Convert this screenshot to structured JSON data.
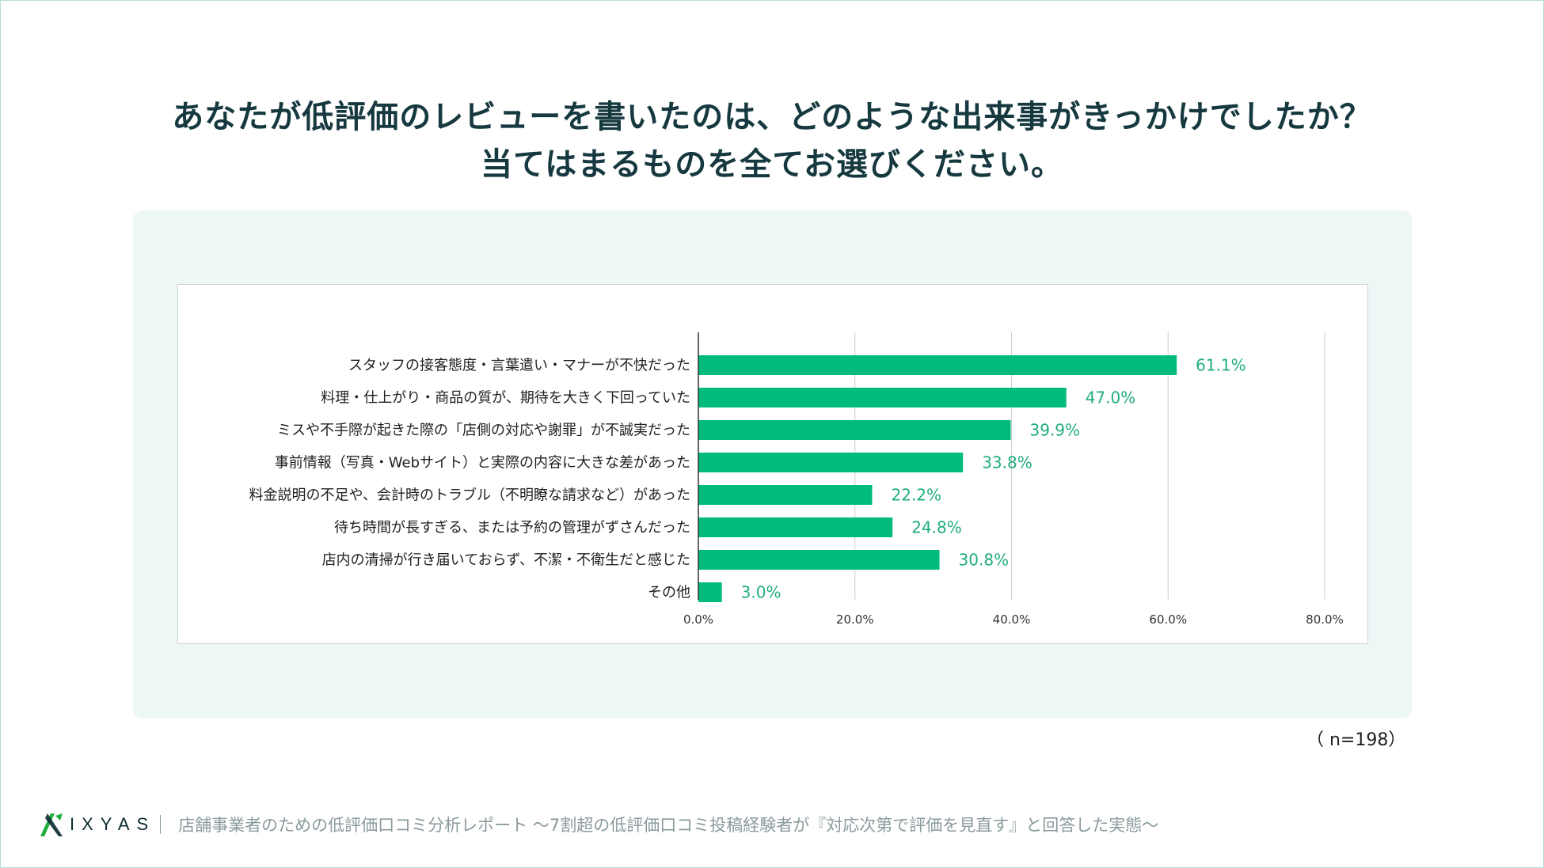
{
  "title": {
    "line1": "あなたが低評価のレビューを書いたのは、どのような出来事がきっかけでしたか？",
    "line2": "当てはまるものを全てお選びください。"
  },
  "chart_data": {
    "type": "bar",
    "orientation": "horizontal",
    "categories": [
      "スタッフの接客態度・言葉遣い・マナーが不快だった",
      "料理・仕上がり・商品の質が、期待を大きく下回っていた",
      "ミスや不手際が起きた際の「店側の対応や謝罪」が不誠実だった",
      "事前情報（写真・Webサイト）と実際の内容に大きな差があった",
      "料金説明の不足や、会計時のトラブル（不明瞭な請求など）があった",
      "待ち時間が長すぎる、または予約の管理がずさんだった",
      "店内の清掃が行き届いておらず、不潔・不衛生だと感じた",
      "その他"
    ],
    "values": [
      61.1,
      47.0,
      39.9,
      33.8,
      22.2,
      24.8,
      30.8,
      3.0
    ],
    "value_labels": [
      "61.1%",
      "47.0%",
      "39.9%",
      "33.8%",
      "22.2%",
      "24.8%",
      "30.8%",
      "3.0%"
    ],
    "xlim": [
      0,
      80
    ],
    "xticks": [
      0,
      20,
      40,
      60,
      80
    ],
    "xtick_labels": [
      "0.0%",
      "20.0%",
      "40.0%",
      "60.0%",
      "80.0%"
    ],
    "grid": true,
    "bar_color": "#00bb7c",
    "label_color": "#1fae7a"
  },
  "sample_note": "（ n=198）",
  "footer": {
    "logo_text": "IXYAS",
    "report_title": "店舗事業者のための低評価口コミ分析レポート ～7割超の低評価口コミ投稿経験者が『対応次第で評価を見直す』と回答した実態～"
  }
}
